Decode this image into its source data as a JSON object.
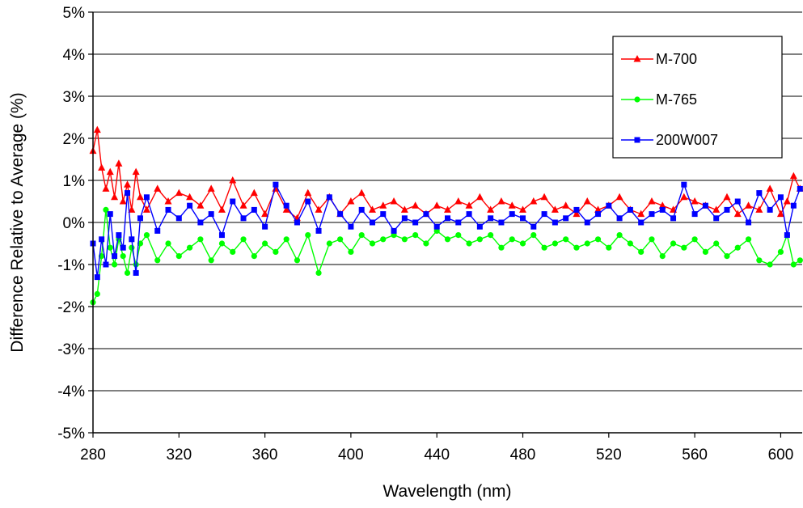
{
  "chart_data": {
    "type": "line",
    "xlabel": "Wavelength (nm)",
    "ylabel": "Difference Relative to Average (%)",
    "xlim": [
      280,
      610
    ],
    "ylim": [
      -5,
      5
    ],
    "x_ticks": [
      280,
      320,
      360,
      400,
      440,
      480,
      520,
      560,
      600
    ],
    "y_ticks": [
      -5,
      -4,
      -3,
      -2,
      -1,
      0,
      1,
      2,
      3,
      4,
      5
    ],
    "y_tick_labels": [
      "-5%",
      "-4%",
      "-3%",
      "-2%",
      "-1%",
      "0%",
      "1%",
      "2%",
      "3%",
      "4%",
      "5%"
    ],
    "x_tick_labels": [
      "280",
      "320",
      "360",
      "400",
      "440",
      "480",
      "520",
      "560",
      "600"
    ],
    "grid": "horizontal",
    "legend_position": "top-right",
    "series": [
      {
        "name": "M-700",
        "color": "#ff0000",
        "marker": "triangle",
        "x": [
          280,
          282,
          284,
          286,
          288,
          290,
          292,
          294,
          296,
          298,
          300,
          302,
          305,
          310,
          315,
          320,
          325,
          330,
          335,
          340,
          345,
          350,
          355,
          360,
          365,
          370,
          375,
          380,
          385,
          390,
          395,
          400,
          405,
          410,
          415,
          420,
          425,
          430,
          435,
          440,
          445,
          450,
          455,
          460,
          465,
          470,
          475,
          480,
          485,
          490,
          495,
          500,
          505,
          510,
          515,
          520,
          525,
          530,
          535,
          540,
          545,
          550,
          555,
          560,
          565,
          570,
          575,
          580,
          585,
          590,
          595,
          600,
          603,
          606,
          609
        ],
        "y": [
          1.7,
          2.2,
          1.3,
          0.8,
          1.2,
          0.6,
          1.4,
          0.5,
          0.9,
          0.3,
          1.2,
          0.6,
          0.3,
          0.8,
          0.5,
          0.7,
          0.6,
          0.4,
          0.8,
          0.3,
          1.0,
          0.4,
          0.7,
          0.2,
          0.8,
          0.3,
          0.1,
          0.7,
          0.3,
          0.6,
          0.2,
          0.5,
          0.7,
          0.3,
          0.4,
          0.5,
          0.3,
          0.4,
          0.2,
          0.4,
          0.3,
          0.5,
          0.4,
          0.6,
          0.3,
          0.5,
          0.4,
          0.3,
          0.5,
          0.6,
          0.3,
          0.4,
          0.2,
          0.5,
          0.3,
          0.4,
          0.6,
          0.3,
          0.2,
          0.5,
          0.4,
          0.3,
          0.6,
          0.5,
          0.4,
          0.3,
          0.6,
          0.2,
          0.4,
          0.3,
          0.8,
          0.2,
          0.5,
          1.1,
          0.8
        ]
      },
      {
        "name": "M-765",
        "color": "#00ff00",
        "marker": "circle",
        "x": [
          280,
          282,
          284,
          286,
          288,
          290,
          292,
          294,
          296,
          298,
          300,
          302,
          305,
          310,
          315,
          320,
          325,
          330,
          335,
          340,
          345,
          350,
          355,
          360,
          365,
          370,
          375,
          380,
          385,
          390,
          395,
          400,
          405,
          410,
          415,
          420,
          425,
          430,
          435,
          440,
          445,
          450,
          455,
          460,
          465,
          470,
          475,
          480,
          485,
          490,
          495,
          500,
          505,
          510,
          515,
          520,
          525,
          530,
          535,
          540,
          545,
          550,
          555,
          560,
          565,
          570,
          575,
          580,
          585,
          590,
          595,
          600,
          603,
          606,
          609
        ],
        "y": [
          -1.9,
          -1.7,
          -0.8,
          0.3,
          -0.6,
          -1.0,
          -0.4,
          -0.8,
          -1.2,
          -0.6,
          -1.0,
          -0.5,
          -0.3,
          -0.9,
          -0.5,
          -0.8,
          -0.6,
          -0.4,
          -0.9,
          -0.5,
          -0.7,
          -0.4,
          -0.8,
          -0.5,
          -0.7,
          -0.4,
          -0.9,
          -0.3,
          -1.2,
          -0.5,
          -0.4,
          -0.7,
          -0.3,
          -0.5,
          -0.4,
          -0.3,
          -0.4,
          -0.3,
          -0.5,
          -0.2,
          -0.4,
          -0.3,
          -0.5,
          -0.4,
          -0.3,
          -0.6,
          -0.4,
          -0.5,
          -0.3,
          -0.6,
          -0.5,
          -0.4,
          -0.6,
          -0.5,
          -0.4,
          -0.6,
          -0.3,
          -0.5,
          -0.7,
          -0.4,
          -0.8,
          -0.5,
          -0.6,
          -0.4,
          -0.7,
          -0.5,
          -0.8,
          -0.6,
          -0.4,
          -0.9,
          -1.0,
          -0.7,
          -0.3,
          -1.0,
          -0.9
        ]
      },
      {
        "name": "200W007",
        "color": "#0000ff",
        "marker": "square",
        "x": [
          280,
          282,
          284,
          286,
          288,
          290,
          292,
          294,
          296,
          298,
          300,
          302,
          305,
          310,
          315,
          320,
          325,
          330,
          335,
          340,
          345,
          350,
          355,
          360,
          365,
          370,
          375,
          380,
          385,
          390,
          395,
          400,
          405,
          410,
          415,
          420,
          425,
          430,
          435,
          440,
          445,
          450,
          455,
          460,
          465,
          470,
          475,
          480,
          485,
          490,
          495,
          500,
          505,
          510,
          515,
          520,
          525,
          530,
          535,
          540,
          545,
          550,
          555,
          560,
          565,
          570,
          575,
          580,
          585,
          590,
          595,
          600,
          603,
          606,
          609
        ],
        "y": [
          -0.5,
          -1.3,
          -0.4,
          -1.0,
          0.2,
          -0.8,
          -0.3,
          -0.6,
          0.7,
          -0.4,
          -1.2,
          0.1,
          0.6,
          -0.2,
          0.3,
          0.1,
          0.4,
          0.0,
          0.2,
          -0.3,
          0.5,
          0.1,
          0.3,
          -0.1,
          0.9,
          0.4,
          0.0,
          0.5,
          -0.2,
          0.6,
          0.2,
          -0.1,
          0.3,
          0.0,
          0.2,
          -0.2,
          0.1,
          0.0,
          0.2,
          -0.1,
          0.1,
          0.0,
          0.2,
          -0.1,
          0.1,
          0.0,
          0.2,
          0.1,
          -0.1,
          0.2,
          0.0,
          0.1,
          0.3,
          0.0,
          0.2,
          0.4,
          0.1,
          0.3,
          0.0,
          0.2,
          0.3,
          0.1,
          0.9,
          0.2,
          0.4,
          0.1,
          0.3,
          0.5,
          0.0,
          0.7,
          0.3,
          0.6,
          -0.3,
          0.4,
          0.8
        ]
      }
    ]
  }
}
